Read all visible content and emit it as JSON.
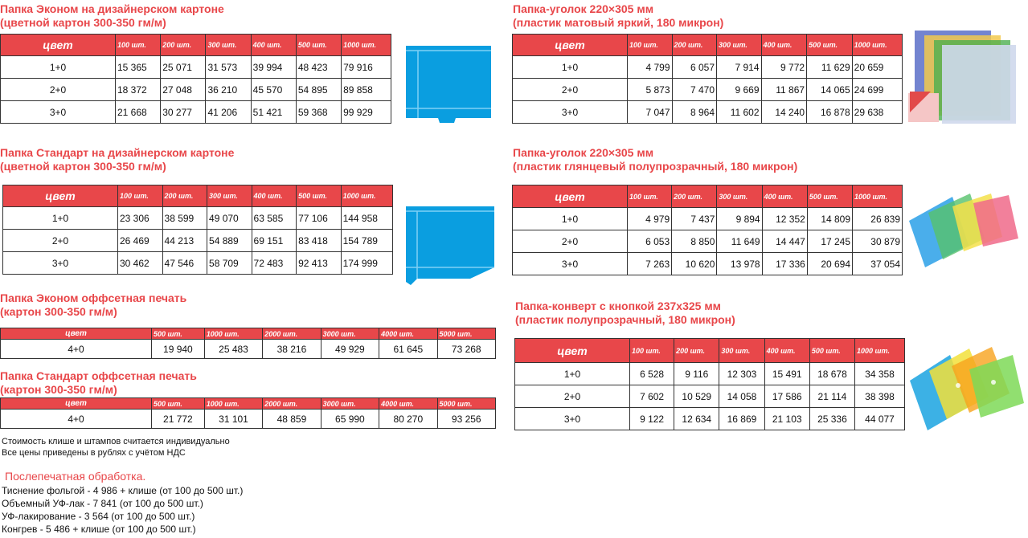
{
  "tables": [
    {
      "title": "Папка Эконом на дизайнерском картоне\n(цветной картон 300-350 гм/м)",
      "headers": [
        "цвет",
        "100 шт.",
        "200 шт.",
        "300 шт.",
        "400 шт.",
        "500 шт.",
        "1000 шт."
      ],
      "rows": [
        [
          "1+0",
          "15 365",
          "25 071",
          "31 573",
          "39 994",
          "48 423",
          "79 916"
        ],
        [
          "2+0",
          "18 372",
          "27 048",
          "36 210",
          "45 570",
          "54 895",
          "89 858"
        ],
        [
          "3+0",
          "21 668",
          "30 277",
          "41 206",
          "51 421",
          "59 368",
          "99 929"
        ]
      ]
    },
    {
      "title": "Папка Стандарт на дизайнерском картоне\n(цветной картон 300-350 гм/м)",
      "headers": [
        "цвет",
        "100 шт.",
        "200 шт.",
        "300 шт.",
        "400 шт.",
        "500 шт.",
        "1000 шт."
      ],
      "rows": [
        [
          "1+0",
          "23 306",
          "38 599",
          "49 070",
          "63 585",
          "77 106",
          "144 958"
        ],
        [
          "2+0",
          "26 469",
          "44 213",
          "54 889",
          "69 151",
          "83 418",
          "154 789"
        ],
        [
          "3+0",
          "30 462",
          "47 546",
          "58 709",
          "72 483",
          "92 413",
          "174 999"
        ]
      ]
    },
    {
      "title": "Папка Эконом оффсетная печать\n(картон 300-350 гм/м)",
      "headers": [
        "цвет",
        "500 шт.",
        "1000 шт.",
        "2000 шт.",
        "3000 шт.",
        "4000 шт.",
        "5000 шт."
      ],
      "rows": [
        [
          "4+0",
          "19 940",
          "25 483",
          "38 216",
          "49 929",
          "61 645",
          "73 268"
        ]
      ]
    },
    {
      "title": "Папка Стандарт оффсетная печать\n(картон 300-350 гм/м)",
      "headers": [
        "цвет",
        "500 шт.",
        "1000 шт.",
        "2000 шт.",
        "3000 шт.",
        "4000 шт.",
        "5000 шт."
      ],
      "rows": [
        [
          "4+0",
          "21 772",
          "31 101",
          "48 859",
          "65 990",
          "80 270",
          "93 256"
        ]
      ]
    },
    {
      "title": "Папка-уголок 220×305 мм\n(пластик матовый яркий, 180 микрон)",
      "headers": [
        "цвет",
        "100 шт.",
        "200 шт.",
        "300 шт.",
        "400 шт.",
        "500 шт.",
        "1000 шт."
      ],
      "rows": [
        [
          "1+0",
          "4 799",
          "6 057",
          "7 914",
          "9 772",
          "11 629",
          "20 659"
        ],
        [
          "2+0",
          "5 873",
          "7 470",
          "9 669",
          "11 867",
          "14 065",
          "24 699"
        ],
        [
          "3+0",
          "7 047",
          "8 964",
          "11 602",
          "14 240",
          "16 878",
          "29 638"
        ]
      ]
    },
    {
      "title": "Папка-уголок 220×305 мм\n(пластик глянцевый полупрозрачный, 180 микрон)",
      "headers": [
        "цвет",
        "100 шт.",
        "200 шт.",
        "300 шт.",
        "400 шт.",
        "500 шт.",
        "1000 шт."
      ],
      "rows": [
        [
          "1+0",
          "4 979",
          "7 437",
          "9 894",
          "12 352",
          "14 809",
          "26 839"
        ],
        [
          "2+0",
          "6 053",
          "8 850",
          "11 649",
          "14 447",
          "17 245",
          "30 879"
        ],
        [
          "3+0",
          "7 263",
          "10 620",
          "13 978",
          "17 336",
          "20 694",
          "37 054"
        ]
      ]
    },
    {
      "title": "Папка-конверт  с кнопкой 237х325 мм\n(пластик полупрозрачный, 180 микрон)",
      "headers": [
        "цвет",
        "100 шт.",
        "200 шт.",
        "300 шт.",
        "400 шт.",
        "500 шт.",
        "1000 шт."
      ],
      "rows": [
        [
          "1+0",
          "6 528",
          "9 116",
          "12 303",
          "15 491",
          "18 678",
          "34 358"
        ],
        [
          "2+0",
          "7 602",
          "10 529",
          "14 058",
          "17 586",
          "21 114",
          "38 398"
        ],
        [
          "3+0",
          "9 122",
          "12 634",
          "16 869",
          "21 103",
          "25 336",
          "44 077"
        ]
      ]
    }
  ],
  "notes": [
    "Стоимость клише и штампов считается индивидуально",
    "Все цены приведены в рублях с учётом НДС"
  ],
  "postprint": {
    "title": "Послепечатная обработка.",
    "lines": [
      "Тиснение фольгой - 4 986 + клише (от 100 до 500 шт.)",
      "Объемный УФ-лак - 7 841 (от 100 до 500 шт.)",
      "УФ-лакирование - 3 564 (от 100 до 500 шт.)",
      "Конгрев -  5 486 + клише (от 100 до 500 шт.)"
    ]
  },
  "colors": {
    "accent": "#e8474a",
    "folder_blue": "#0a9ee0"
  }
}
